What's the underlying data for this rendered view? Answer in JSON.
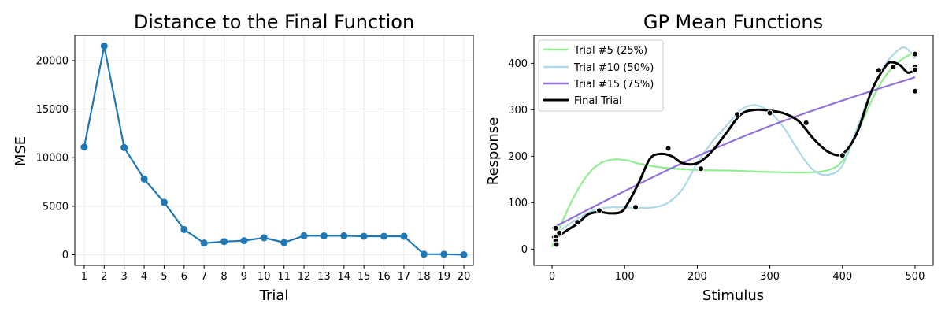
{
  "chart_data": [
    {
      "type": "line",
      "title": "Distance to the Final Function",
      "xlabel": "Trial",
      "ylabel": "MSE",
      "x": [
        1,
        2,
        3,
        4,
        5,
        6,
        7,
        8,
        9,
        10,
        11,
        12,
        13,
        14,
        15,
        16,
        17,
        18,
        19,
        20
      ],
      "series": [
        {
          "values": [
            11100,
            21500,
            11050,
            7800,
            5400,
            2600,
            1200,
            1350,
            1450,
            1750,
            1250,
            1950,
            1950,
            1950,
            1900,
            1900,
            1900,
            60,
            50,
            0
          ]
        }
      ],
      "xticks": [
        "1",
        "2",
        "3",
        "4",
        "5",
        "6",
        "7",
        "8",
        "9",
        "10",
        "11",
        "12",
        "13",
        "14",
        "15",
        "16",
        "17",
        "18",
        "19",
        "20"
      ],
      "yticks": [
        "0",
        "5000",
        "10000",
        "15000",
        "20000"
      ],
      "ylim": [
        -1100,
        22600
      ],
      "grid": true,
      "color": "#1f77b4"
    },
    {
      "type": "line",
      "title": "GP Mean Functions",
      "xlabel": "Stimulus",
      "ylabel": "Response",
      "xlim": [
        -25,
        525
      ],
      "ylim": [
        -35,
        460
      ],
      "xticks": [
        "0",
        "100",
        "200",
        "300",
        "400",
        "500"
      ],
      "yticks": [
        "0",
        "100",
        "200",
        "300",
        "400"
      ],
      "grid": false,
      "legend_position": "top-left",
      "series": [
        {
          "name": "Trial #5 (25%)",
          "color": "#90ee90",
          "x": [
            0,
            20,
            40,
            60,
            80,
            100,
            120,
            150,
            180,
            210,
            250,
            300,
            350,
            380,
            400,
            420,
            450,
            475,
            500
          ],
          "y": [
            5,
            80,
            140,
            178,
            192,
            192,
            184,
            176,
            172,
            170,
            169,
            166,
            165,
            170,
            190,
            250,
            350,
            400,
            425
          ]
        },
        {
          "name": "Trial #10 (50%)",
          "color": "#add8e6",
          "x": [
            0,
            20,
            40,
            60,
            80,
            100,
            120,
            140,
            160,
            180,
            200,
            220,
            240,
            260,
            280,
            300,
            320,
            340,
            360,
            380,
            400,
            420,
            440,
            460,
            480,
            490,
            500
          ],
          "y": [
            25,
            50,
            70,
            85,
            90,
            90,
            89,
            90,
            100,
            130,
            185,
            230,
            265,
            300,
            310,
            295,
            260,
            210,
            170,
            160,
            180,
            260,
            340,
            400,
            432,
            430,
            410
          ]
        },
        {
          "name": "Trial #15 (75%)",
          "color": "#9370db",
          "x": [
            0,
            100,
            200,
            300,
            400,
            500
          ],
          "y": [
            45,
            125,
            200,
            265,
            320,
            370
          ]
        },
        {
          "name": "Final Trial",
          "color": "#000000",
          "x": [
            0,
            10,
            20,
            35,
            50,
            65,
            80,
            95,
            105,
            120,
            135,
            150,
            165,
            180,
            200,
            220,
            240,
            260,
            280,
            300,
            320,
            340,
            360,
            380,
            400,
            420,
            440,
            460,
            470,
            480,
            490,
            500
          ],
          "y": [
            25,
            30,
            40,
            55,
            75,
            80,
            77,
            80,
            100,
            145,
            195,
            205,
            200,
            185,
            185,
            210,
            250,
            290,
            300,
            298,
            292,
            275,
            238,
            210,
            205,
            250,
            340,
            395,
            402,
            395,
            380,
            385
          ]
        }
      ],
      "points": {
        "x": [
          5,
          5,
          5,
          6,
          10,
          35,
          65,
          115,
          160,
          205,
          255,
          300,
          350,
          400,
          450,
          470,
          500,
          500,
          500,
          500
        ],
        "y": [
          45,
          25,
          18,
          10,
          35,
          58,
          83,
          90,
          217,
          173,
          290,
          293,
          272,
          202,
          385,
          392,
          420,
          392,
          386,
          340
        ]
      }
    }
  ]
}
